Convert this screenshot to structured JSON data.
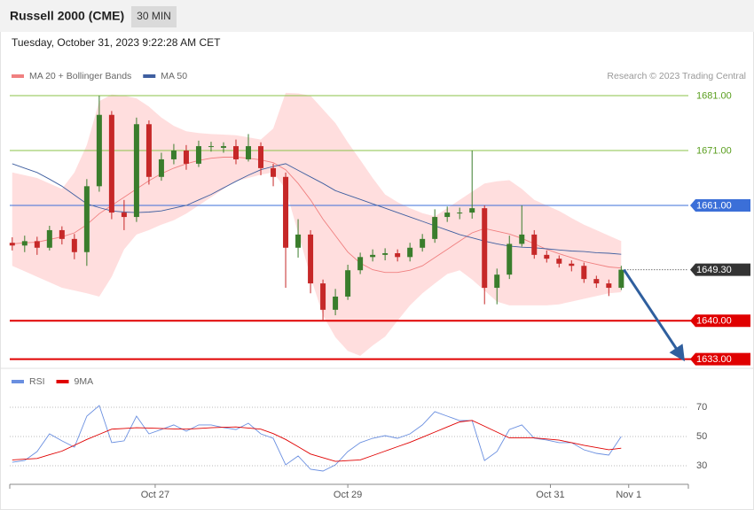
{
  "header": {
    "title": "Russell 2000 (CME)",
    "timeframe": "30 MIN",
    "datetime": "Tuesday, October 31, 2023 9:22:28 AM CET",
    "credit": "Research © 2023 Trading Central"
  },
  "chart_data": [
    {
      "type": "candlestick",
      "xlim": [
        -0.2,
        54.4
      ],
      "ylim": [
        1632.3,
        1683.1
      ],
      "up_color": "#3a7d2c",
      "down_color": "#c62828",
      "open": [
        1654.2,
        1653.7,
        1654.5,
        1653.3,
        1656.5,
        1654.9,
        1652.5,
        1664.5,
        1677.5,
        1659.7,
        1658.9,
        1675.8,
        1666.2,
        1669.4,
        1671,
        1668.6,
        1671.8,
        1671.5,
        1671.8,
        1669.4,
        1671.8,
        1667.8,
        1666.2,
        1653.3,
        1655.7,
        1646.8,
        1642,
        1644.4,
        1649.2,
        1651.6,
        1652,
        1652.3,
        1651.6,
        1653.3,
        1654.9,
        1658.9,
        1659.7,
        1659.7,
        1660.5,
        1646,
        1648.4,
        1654,
        1655.7,
        1652,
        1651.3,
        1650.4,
        1650,
        1647.6,
        1646.8,
        1646
      ],
      "high": [
        1655.2,
        1655.5,
        1655.3,
        1657.3,
        1657.2,
        1655.8,
        1665.8,
        1681,
        1678.2,
        1662,
        1677,
        1676.5,
        1670.6,
        1672.2,
        1672,
        1672.8,
        1672.6,
        1672.5,
        1673,
        1674,
        1672.5,
        1668.6,
        1667,
        1658.5,
        1656.5,
        1647.5,
        1645.8,
        1650.2,
        1652.4,
        1653,
        1653.2,
        1653,
        1654.2,
        1655.8,
        1660.3,
        1660.8,
        1660.6,
        1671,
        1661,
        1649.5,
        1655.5,
        1661,
        1656.5,
        1652.8,
        1651.9,
        1651,
        1650.6,
        1648.2,
        1647.5,
        1650
      ],
      "low": [
        1652.8,
        1652.5,
        1652,
        1652.8,
        1653.9,
        1651.2,
        1650,
        1663.5,
        1658.5,
        1656.5,
        1658,
        1664.8,
        1665.5,
        1668.5,
        1667.5,
        1668,
        1670.8,
        1670.6,
        1668.5,
        1669,
        1666.5,
        1664.5,
        1646,
        1651.5,
        1645,
        1640,
        1641,
        1643.8,
        1648.5,
        1650.8,
        1651,
        1650.8,
        1650.8,
        1652.6,
        1654.2,
        1658,
        1658.5,
        1658.6,
        1643,
        1643,
        1647.6,
        1653.5,
        1651.3,
        1650.6,
        1649.7,
        1649,
        1646.9,
        1646,
        1644.5,
        1645.6
      ],
      "close": [
        1653.7,
        1654.5,
        1653.3,
        1656.5,
        1654.9,
        1652.5,
        1664.5,
        1677.5,
        1659.7,
        1658.9,
        1675.8,
        1666.2,
        1669.4,
        1671,
        1668.6,
        1671.8,
        1671.8,
        1671.8,
        1669.4,
        1671.8,
        1667.8,
        1666.2,
        1653.3,
        1655.7,
        1646.8,
        1642,
        1644.4,
        1649.2,
        1651.6,
        1652,
        1652.3,
        1651.6,
        1653.3,
        1654.9,
        1658.9,
        1659.7,
        1659.7,
        1660.5,
        1646,
        1648.4,
        1654,
        1655.7,
        1652,
        1651.3,
        1650.4,
        1650,
        1647.6,
        1646.8,
        1646,
        1649.3
      ],
      "overlays": [
        {
          "name": "MA 20 + Bollinger Bands",
          "color": "#f08080",
          "band_color": "#ffdede",
          "values": [
            1654,
            1654.2,
            1654.3,
            1654.8,
            1655.3,
            1656,
            1657.5,
            1659.5,
            1661,
            1662.5,
            1664,
            1665.5,
            1666.8,
            1667.8,
            1668.6,
            1669.2,
            1669.6,
            1669.8,
            1669.8,
            1669.6,
            1669.3,
            1668.8,
            1667.5,
            1665,
            1662,
            1658.5,
            1655.5,
            1652.5,
            1650.5,
            1649.3,
            1648.8,
            1648.8,
            1649.2,
            1650,
            1651.5,
            1653,
            1654.5,
            1656,
            1656.8,
            1656.3,
            1655.8,
            1655,
            1654,
            1653,
            1652.2,
            1651.5,
            1650.8,
            1650.3,
            1649.8,
            1649.6
          ],
          "upper": [
            1667,
            1666.5,
            1666,
            1665,
            1664,
            1667,
            1672,
            1680,
            1681.2,
            1681,
            1680.5,
            1679,
            1677,
            1675.5,
            1674.5,
            1674.2,
            1674,
            1673.9,
            1673.8,
            1673.4,
            1673,
            1675,
            1681.5,
            1681.4,
            1681,
            1678.5,
            1676,
            1672.5,
            1669.3,
            1666,
            1663,
            1661.6,
            1660.5,
            1659.6,
            1659,
            1660.5,
            1662,
            1663.5,
            1665,
            1665.4,
            1665.6,
            1664,
            1662,
            1661,
            1660,
            1658.7,
            1657.5,
            1656.5,
            1655.5,
            1654.5
          ],
          "lower": [
            1650,
            1649,
            1648,
            1647,
            1646,
            1645.5,
            1645,
            1644.4,
            1648,
            1653,
            1655.7,
            1656.5,
            1657.5,
            1658.3,
            1659.5,
            1661,
            1662.5,
            1664,
            1665.4,
            1666,
            1666.6,
            1667,
            1664,
            1656,
            1648,
            1641,
            1637,
            1634.5,
            1633.6,
            1635.5,
            1637.1,
            1640,
            1642.8,
            1645,
            1646.8,
            1648.5,
            1649.2,
            1647.5,
            1645.5,
            1643.5,
            1642.8,
            1642.8,
            1642.8,
            1642.8,
            1643,
            1643.5,
            1644,
            1644.5,
            1645,
            1645.2
          ]
        },
        {
          "name": "MA 50",
          "color": "#3f5fa0",
          "values": [
            1668.6,
            1667.8,
            1667,
            1665.8,
            1664.5,
            1662.9,
            1661.3,
            1660.6,
            1660,
            1659.8,
            1659.7,
            1659.8,
            1660,
            1660.5,
            1661,
            1662,
            1663,
            1664.2,
            1665.4,
            1666.5,
            1667.5,
            1668.1,
            1668.6,
            1667.4,
            1666.2,
            1665,
            1663.7,
            1662.9,
            1662.1,
            1661.3,
            1660.5,
            1659.7,
            1658.9,
            1658.1,
            1657.3,
            1656.5,
            1655.7,
            1655.1,
            1654.5,
            1654,
            1653.6,
            1653.4,
            1653.3,
            1653.1,
            1652.9,
            1652.7,
            1652.6,
            1652.4,
            1652.3,
            1652.1
          ]
        }
      ],
      "levels": [
        {
          "value": 1681,
          "label": "1681.00",
          "color": "#8bc34a",
          "text_color": "#5a9e1e",
          "tag": false,
          "line": "solid"
        },
        {
          "value": 1671,
          "label": "1671.00",
          "color": "#8bc34a",
          "text_color": "#5a9e1e",
          "tag": false,
          "line": "solid"
        },
        {
          "value": 1661,
          "label": "1661.00",
          "color": "#3b6fd8",
          "text_color": "#ffffff",
          "tag": true,
          "line": "solid"
        },
        {
          "value": 1649.3,
          "label": "1649.30",
          "color": "#333333",
          "text_color": "#ffffff",
          "tag": true,
          "line": "dotted"
        },
        {
          "value": 1640,
          "label": "1640.00",
          "color": "#e00000",
          "text_color": "#ffffff",
          "tag": true,
          "line": "bold"
        },
        {
          "value": 1633,
          "label": "1633.00",
          "color": "#e00000",
          "text_color": "#ffffff",
          "tag": true,
          "line": "bold"
        }
      ],
      "arrow_color": "#2f5f9e"
    },
    {
      "type": "line",
      "xlim": [
        -0.2,
        54.4
      ],
      "ylim": [
        17.3,
        96
      ],
      "yticks": [
        30,
        50,
        70
      ],
      "grid": true,
      "xticks": [
        {
          "value": 11.5,
          "label": "Oct 27"
        },
        {
          "value": 27,
          "label": "Oct 29"
        },
        {
          "value": 43.3,
          "label": "Oct 31"
        },
        {
          "value": 49.6,
          "label": "Nov 1"
        }
      ],
      "series": [
        {
          "name": "RSI",
          "color": "#6a8fe0",
          "values": [
            32.4,
            33.6,
            39.7,
            51.8,
            47,
            42.7,
            63.9,
            71.2,
            45.8,
            47,
            63.9,
            51.8,
            54.8,
            57.9,
            53.6,
            57.9,
            57.9,
            56.1,
            54.8,
            59.1,
            51.8,
            48.8,
            30.6,
            36.7,
            27.6,
            26.4,
            30.6,
            39.7,
            45.8,
            48.8,
            50.6,
            48.8,
            51.8,
            57.9,
            67,
            63.9,
            60.9,
            60.9,
            33.6,
            39.7,
            54.8,
            57.9,
            48.8,
            47.6,
            45.8,
            45.8,
            40.9,
            38.5,
            37.3,
            50
          ]
        },
        {
          "name": "9MA",
          "color": "#e00000",
          "values": [
            34,
            34.5,
            35,
            37.5,
            40,
            44,
            48,
            51.5,
            55,
            55.5,
            56,
            55.8,
            55.5,
            55.2,
            55,
            55.5,
            56,
            56.3,
            56.5,
            55.8,
            55,
            52,
            48,
            43,
            38,
            35.5,
            33,
            33.5,
            34,
            37,
            40,
            43,
            46,
            49.5,
            53,
            56.5,
            60,
            61,
            57,
            53,
            49,
            49,
            49,
            48.3,
            47.5,
            45.8,
            44,
            42.5,
            41,
            42
          ]
        }
      ]
    }
  ]
}
